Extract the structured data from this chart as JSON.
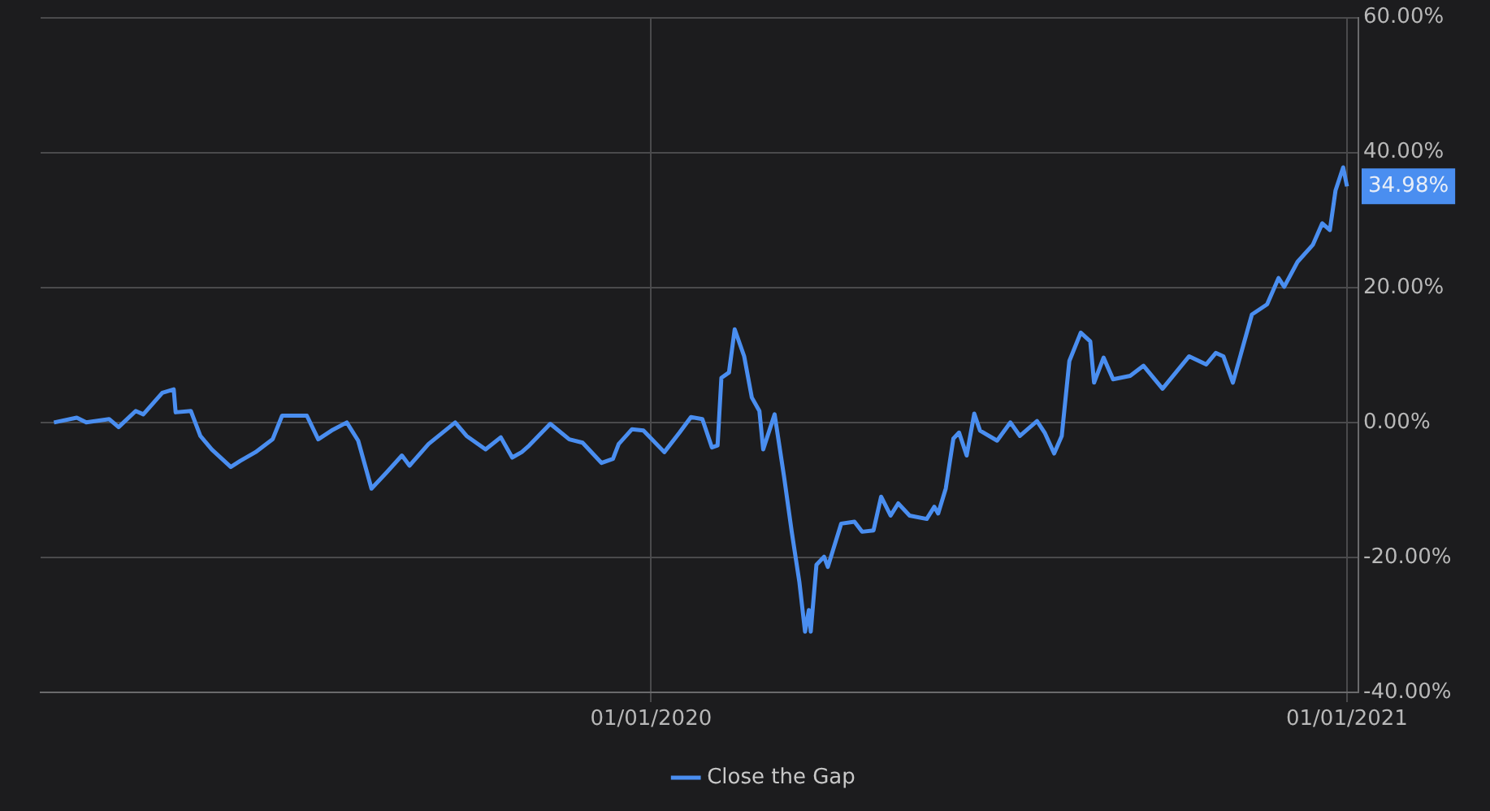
{
  "chart_data": {
    "type": "line",
    "x": [
      "2019-02-21",
      "2019-03-05",
      "2019-03-10",
      "2019-03-22",
      "2019-03-27",
      "2019-04-05",
      "2019-04-09",
      "2019-04-19",
      "2019-04-25",
      "2019-04-26",
      "2019-05-04",
      "2019-05-09",
      "2019-05-15",
      "2019-05-25",
      "2019-05-30",
      "2019-06-07",
      "2019-06-16",
      "2019-06-21",
      "2019-07-04",
      "2019-07-10",
      "2019-07-17",
      "2019-07-25",
      "2019-07-31",
      "2019-08-07",
      "2019-08-15",
      "2019-08-23",
      "2019-08-27",
      "2019-09-06",
      "2019-09-20",
      "2019-09-26",
      "2019-10-06",
      "2019-10-14",
      "2019-10-20",
      "2019-10-25",
      "2019-10-29",
      "2019-11-09",
      "2019-11-19",
      "2019-11-26",
      "2019-12-06",
      "2019-12-12",
      "2019-12-15",
      "2019-12-22",
      "2019-12-28",
      "2020-01-08",
      "2020-01-16",
      "2020-01-22",
      "2020-01-28",
      "2020-02-02",
      "2020-02-05",
      "2020-02-07",
      "2020-02-11",
      "2020-02-14",
      "2020-02-19",
      "2020-02-23",
      "2020-02-27",
      "2020-02-29",
      "2020-03-06",
      "2020-03-11",
      "2020-03-15",
      "2020-03-19",
      "2020-03-22",
      "2020-03-24",
      "2020-03-25",
      "2020-03-28",
      "2020-04-01",
      "2020-04-03",
      "2020-04-10",
      "2020-04-17",
      "2020-04-21",
      "2020-04-27",
      "2020-05-01",
      "2020-05-06",
      "2020-05-10",
      "2020-05-16",
      "2020-05-25",
      "2020-05-29",
      "2020-05-31",
      "2020-06-04",
      "2020-06-08",
      "2020-06-11",
      "2020-06-15",
      "2020-06-19",
      "2020-06-22",
      "2020-07-01",
      "2020-07-08",
      "2020-07-13",
      "2020-07-22",
      "2020-07-26",
      "2020-07-31",
      "2020-08-04",
      "2020-08-08",
      "2020-08-14",
      "2020-08-19",
      "2020-08-21",
      "2020-08-26",
      "2020-08-31",
      "2020-09-09",
      "2020-09-16",
      "2020-09-26",
      "2020-10-03",
      "2020-10-10",
      "2020-10-19",
      "2020-10-24",
      "2020-10-28",
      "2020-11-02",
      "2020-11-12",
      "2020-11-20",
      "2020-11-26",
      "2020-11-29",
      "2020-12-06",
      "2020-12-14",
      "2020-12-19",
      "2020-12-23",
      "2020-12-26",
      "2020-12-30",
      "2021-01-01"
    ],
    "series": [
      {
        "name": "Close the Gap",
        "color": "#4a8ef0",
        "values": [
          0,
          0.7,
          0,
          0.5,
          -0.7,
          1.7,
          1.2,
          4.4,
          4.9,
          1.5,
          1.7,
          -2,
          -4,
          -6.6,
          -5.7,
          -4.4,
          -2.5,
          1,
          1,
          -2.5,
          -1.2,
          0,
          -2.7,
          -9.8,
          -7.4,
          -4.9,
          -6.4,
          -3.2,
          0,
          -2,
          -4,
          -2.2,
          -5.2,
          -4.4,
          -3.4,
          -0.2,
          -2.5,
          -3,
          -6,
          -5.4,
          -3.2,
          -1,
          -1.2,
          -4.4,
          -1.5,
          0.8,
          0.5,
          -3.7,
          -3.4,
          6.6,
          7.4,
          13.8,
          9.8,
          3.7,
          1.7,
          -4,
          1.2,
          -8.1,
          -16.2,
          -23.6,
          -31,
          -27.8,
          -31,
          -21.1,
          -19.9,
          -21.4,
          -15,
          -14.7,
          -16.2,
          -16,
          -11,
          -13.8,
          -12,
          -13.8,
          -14.3,
          -12.5,
          -13.5,
          -9.8,
          -2.4,
          -1.5,
          -4.9,
          1.3,
          -1.2,
          -2.7,
          0,
          -2,
          0.2,
          -1.5,
          -4.6,
          -2,
          9.1,
          13.3,
          12,
          5.9,
          9.6,
          6.4,
          6.9,
          8.4,
          5,
          7.4,
          9.8,
          8.6,
          10.3,
          9.8,
          5.9,
          16,
          17.5,
          21.4,
          20.1,
          23.8,
          26.3,
          29.5,
          28.5,
          34.4,
          37.8,
          34.98
        ]
      }
    ],
    "xlim": [
      "2019-02-14",
      "2021-01-07"
    ],
    "xticks": [
      {
        "value": "2020-01-01",
        "label": "01/01/2020"
      },
      {
        "value": "2021-01-01",
        "label": "01/01/2021"
      }
    ],
    "ylim": [
      -40,
      60
    ],
    "yticks": [
      {
        "value": -40,
        "label": "-40.00%"
      },
      {
        "value": -20,
        "label": "-20.00%"
      },
      {
        "value": 0,
        "label": "0.00%"
      },
      {
        "value": 20,
        "label": "20.00%"
      },
      {
        "value": 40,
        "label": "40.00%"
      },
      {
        "value": 60,
        "label": "60.00%"
      }
    ],
    "annotations": [
      {
        "text": "34.98%",
        "x": "2021-01-01",
        "y": 34.98
      }
    ],
    "grid": true,
    "legend": "bottom",
    "marker": "none",
    "line_style": "solid"
  }
}
